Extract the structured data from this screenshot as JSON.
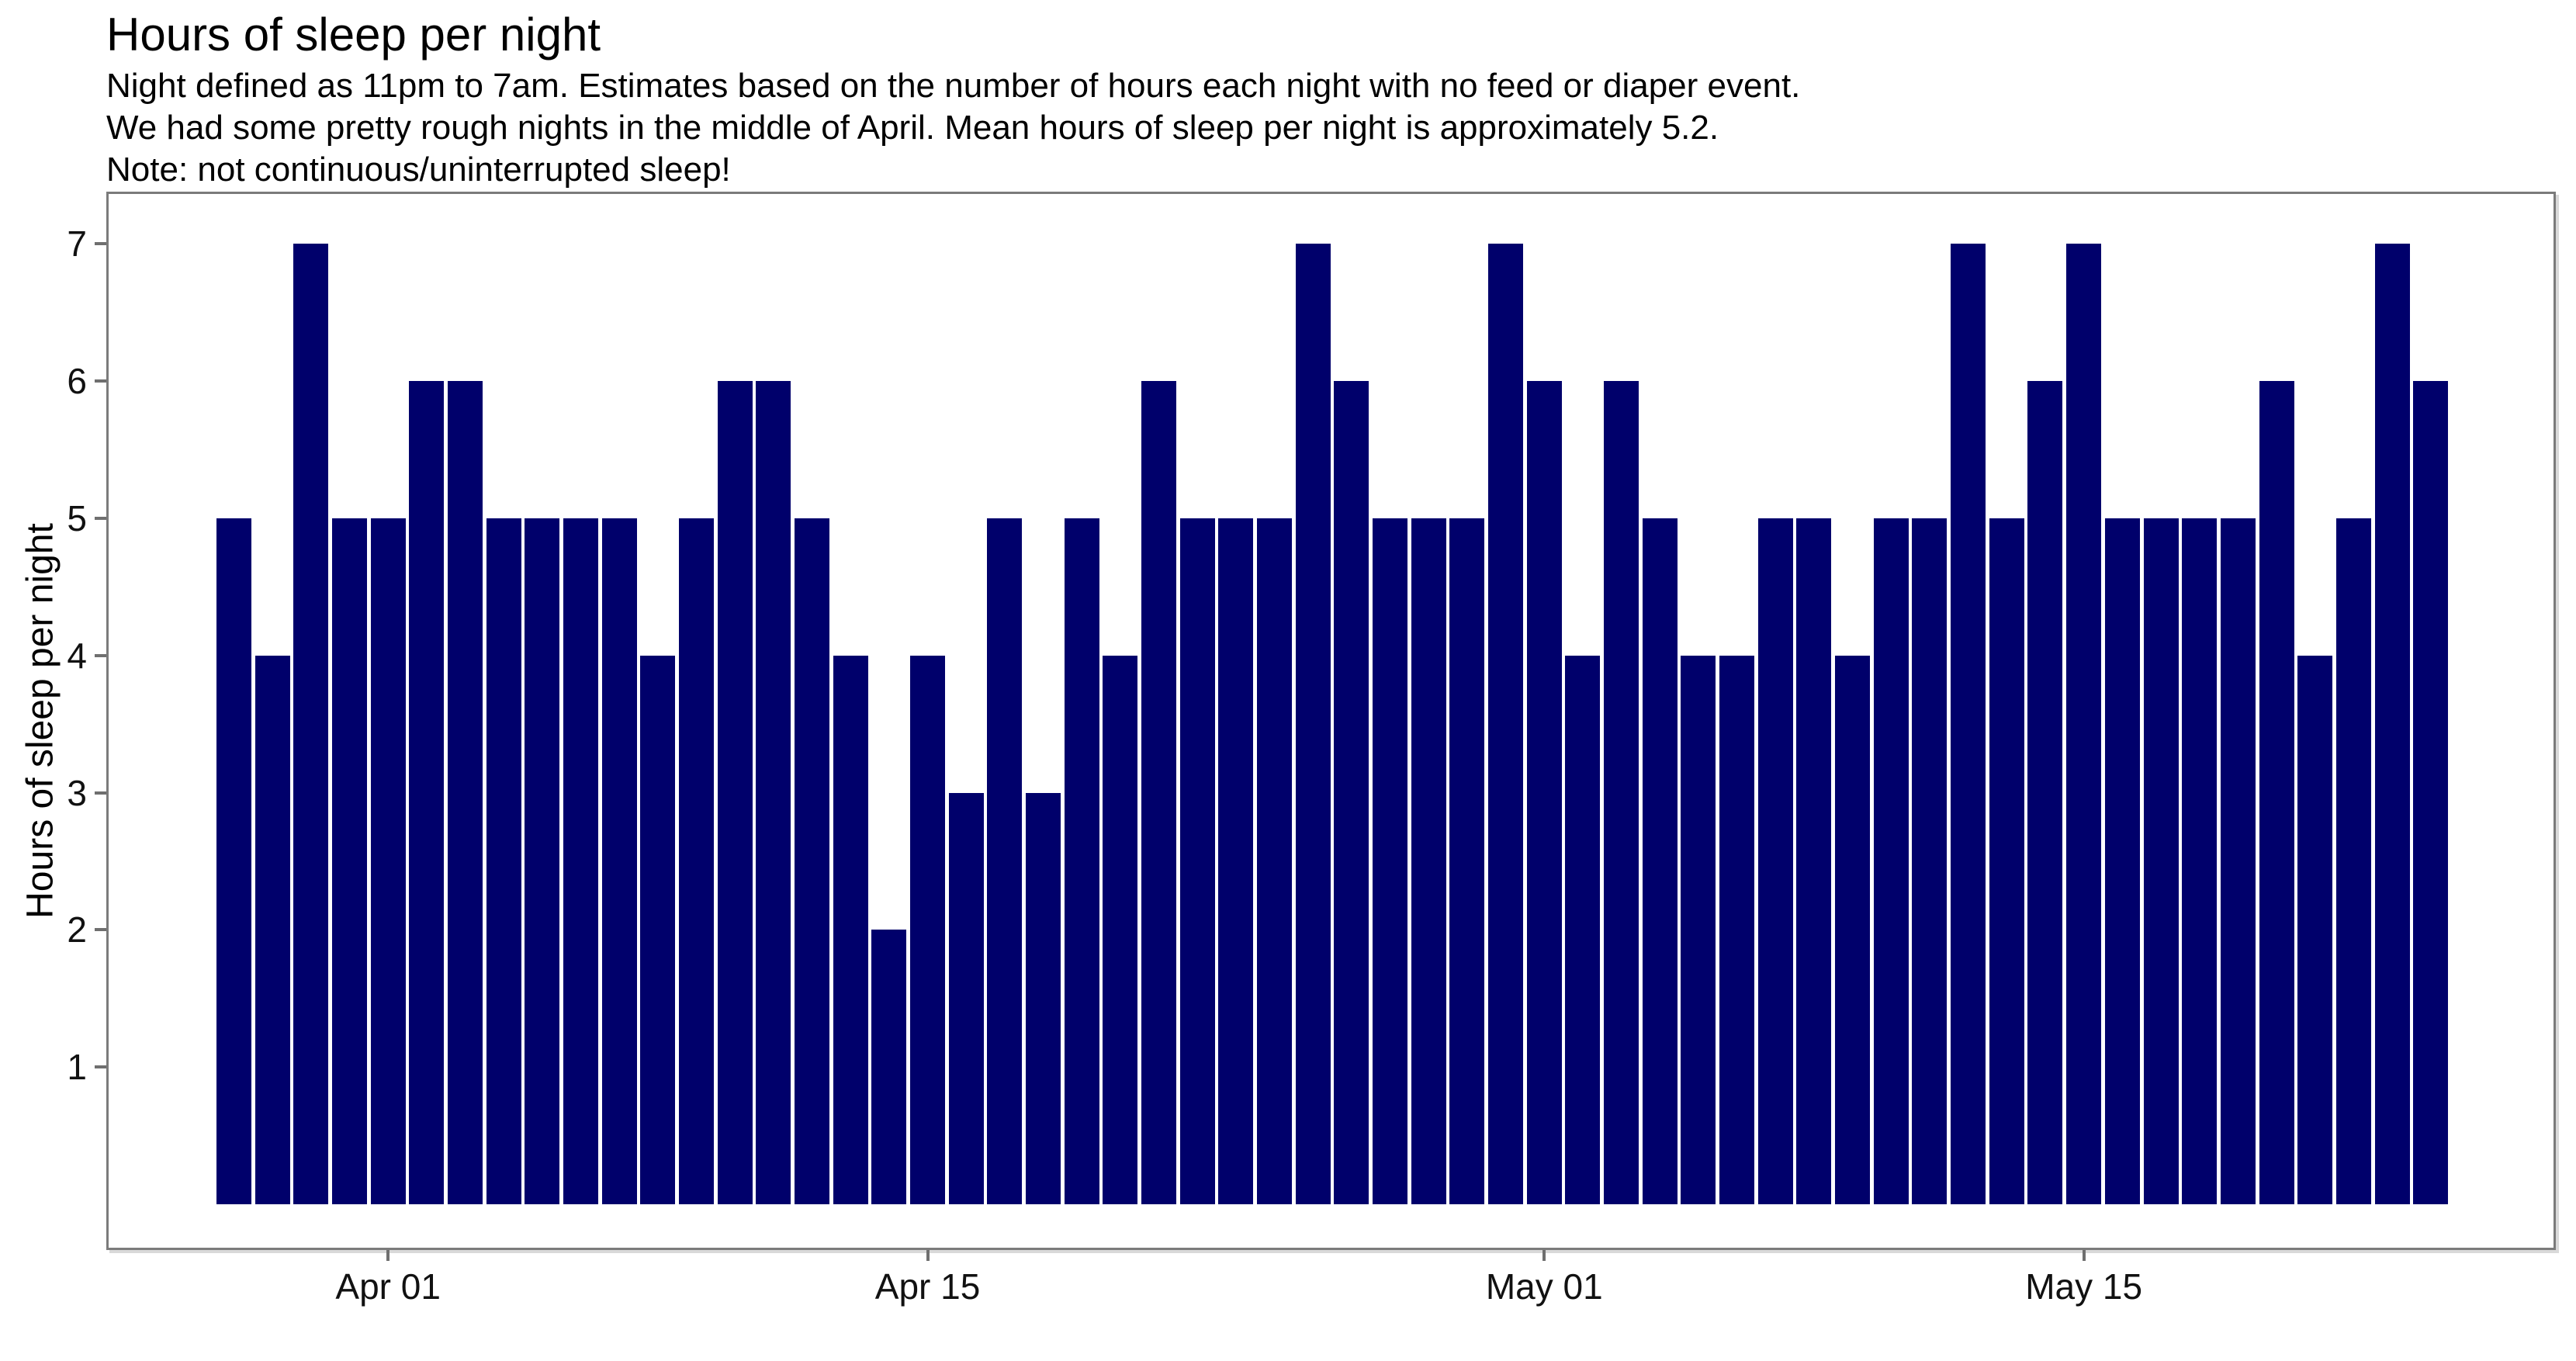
{
  "title": "Hours of sleep per night",
  "subtitle": {
    "lines": [
      "Night defined as 11pm to 7am. Estimates based on the number of hours each night with no feed or diaper event.",
      "We had some pretty rough nights in the middle of April. Mean hours of sleep per night is approximately 5.2.",
      "Note: not continuous/uninterrupted sleep!"
    ]
  },
  "colors": {
    "bar_fill": "#00006B",
    "panel_border": "#7b7b7b",
    "tick_mark": "#6f6f6f",
    "axis_text": "#111111",
    "title_text": "#000000",
    "background": "#ffffff"
  },
  "chart_data": {
    "type": "bar",
    "title": "Hours of sleep per night",
    "xlabel": "",
    "ylabel": "Hours of sleep per night",
    "grid": "off",
    "legend": "none",
    "ylim": [
      0,
      7.4
    ],
    "y_ticks": [
      1,
      2,
      3,
      4,
      5,
      6,
      7
    ],
    "x_tick_labels": [
      {
        "label": "Apr 01",
        "index": 4
      },
      {
        "label": "Apr 15",
        "index": 18
      },
      {
        "label": "May 01",
        "index": 34
      },
      {
        "label": "May 15",
        "index": 48
      }
    ],
    "x": [
      "Mar 28",
      "Mar 29",
      "Mar 30",
      "Mar 31",
      "Apr 01",
      "Apr 02",
      "Apr 03",
      "Apr 04",
      "Apr 05",
      "Apr 06",
      "Apr 07",
      "Apr 08",
      "Apr 09",
      "Apr 10",
      "Apr 11",
      "Apr 12",
      "Apr 13",
      "Apr 14",
      "Apr 15",
      "Apr 16",
      "Apr 17",
      "Apr 18",
      "Apr 19",
      "Apr 20",
      "Apr 21",
      "Apr 22",
      "Apr 23",
      "Apr 24",
      "Apr 25",
      "Apr 26",
      "Apr 27",
      "Apr 28",
      "Apr 29",
      "Apr 30",
      "May 01",
      "May 02",
      "May 03",
      "May 04",
      "May 05",
      "May 06",
      "May 07",
      "May 08",
      "May 09",
      "May 10",
      "May 11",
      "May 12",
      "May 13",
      "May 14",
      "May 15",
      "May 16",
      "May 17",
      "May 18",
      "May 19",
      "May 20",
      "May 21",
      "May 22",
      "May 23",
      "May 24"
    ],
    "values": [
      5,
      4,
      7,
      5,
      5,
      6,
      6,
      5,
      5,
      5,
      5,
      4,
      5,
      6,
      6,
      5,
      4,
      2,
      4,
      3,
      5,
      3,
      5,
      4,
      6,
      5,
      5,
      5,
      7,
      6,
      5,
      5,
      5,
      7,
      6,
      4,
      6,
      5,
      4,
      4,
      5,
      5,
      4,
      5,
      5,
      7,
      5,
      6,
      7,
      5,
      5,
      5,
      5,
      6,
      4,
      5,
      7,
      6
    ],
    "mean_note_value": "5.2"
  }
}
